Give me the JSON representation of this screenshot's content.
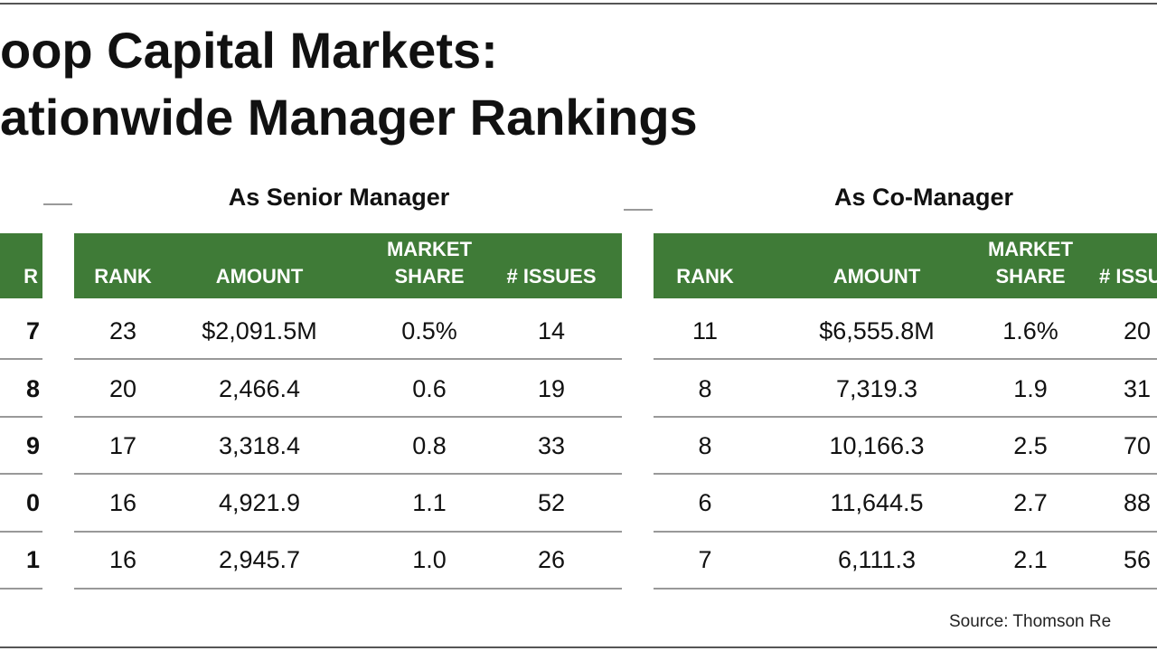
{
  "title_lines": [
    "oop Capital Markets:",
    "ationwide Manager Rankings"
  ],
  "year_column": {
    "header": "R",
    "rows": [
      "7",
      "8",
      "9",
      "0",
      "1"
    ]
  },
  "sections": [
    {
      "heading": "As Senior Manager",
      "columns": [
        [
          "RANK"
        ],
        [
          "AMOUNT"
        ],
        [
          "MARKET",
          "SHARE"
        ],
        [
          "# ISSUES"
        ]
      ],
      "rows": [
        [
          "23",
          "$2,091.5M",
          "0.5%",
          "14"
        ],
        [
          "20",
          "2,466.4",
          "0.6",
          "19"
        ],
        [
          "17",
          "3,318.4",
          "0.8",
          "33"
        ],
        [
          "16",
          "4,921.9",
          "1.1",
          "52"
        ],
        [
          "16",
          "2,945.7",
          "1.0",
          "26"
        ]
      ]
    },
    {
      "heading": "As Co-Manager",
      "columns": [
        [
          "RANK"
        ],
        [
          "AMOUNT"
        ],
        [
          "MARKET",
          "SHARE"
        ],
        [
          "# ISSU"
        ]
      ],
      "rows": [
        [
          "11",
          "$6,555.8M",
          "1.6%",
          "20"
        ],
        [
          "8",
          "7,319.3",
          "1.9",
          "31"
        ],
        [
          "8",
          "10,166.3",
          "2.5",
          "70"
        ],
        [
          "6",
          "11,644.5",
          "2.7",
          "88"
        ],
        [
          "7",
          "6,111.3",
          "2.1",
          "56"
        ]
      ]
    }
  ],
  "source": "Source: Thomson Re"
}
